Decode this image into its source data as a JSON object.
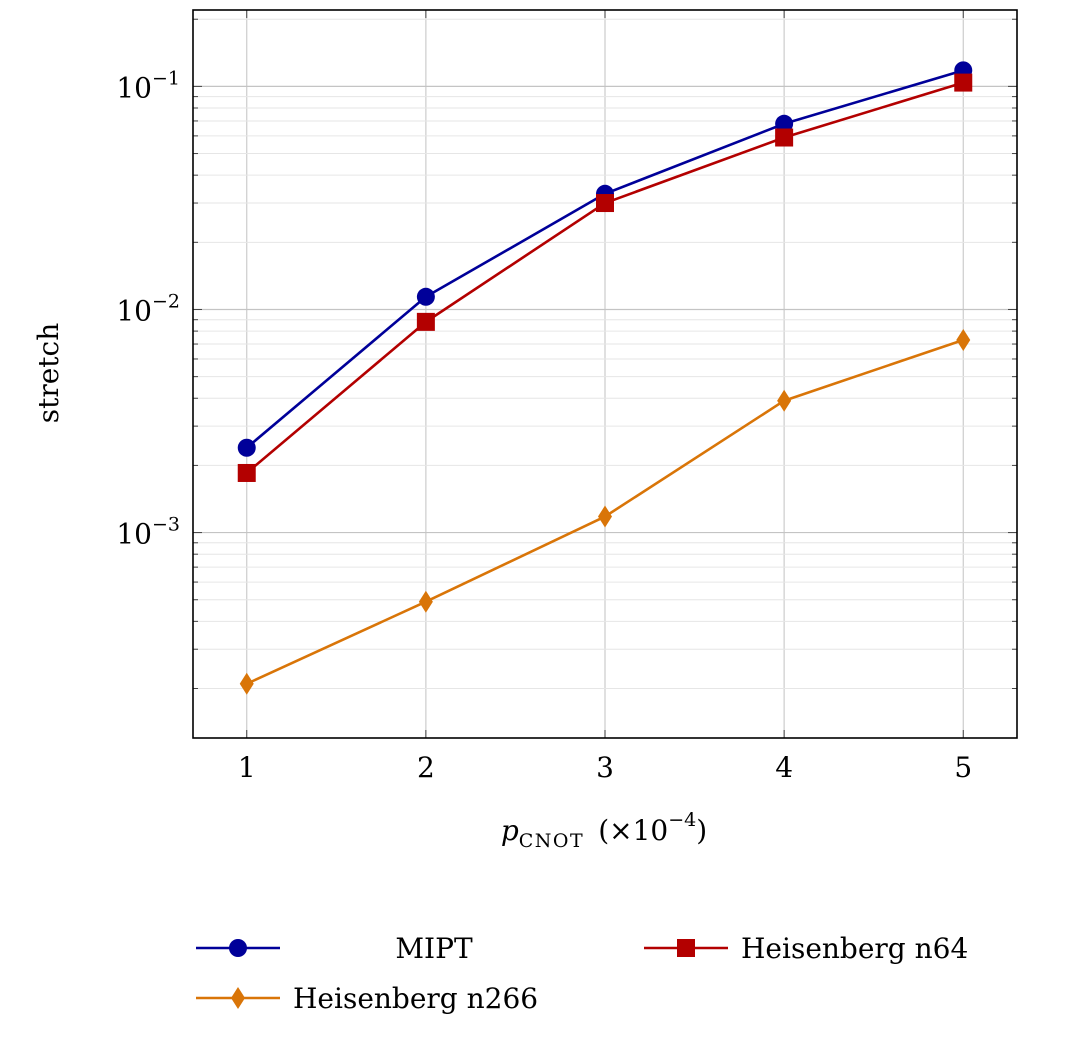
{
  "chart_data": {
    "type": "line",
    "title": "",
    "xlabel": {
      "main": "p",
      "subscript": "CNOT",
      "suffix_open": "(×10",
      "suffix_exp": "−4",
      "suffix_close": ")"
    },
    "ylabel": "stretch",
    "x": [
      1,
      2,
      3,
      4,
      5
    ],
    "xlim": [
      0.7,
      5.3
    ],
    "xticks": [
      "1",
      "2",
      "3",
      "4",
      "5"
    ],
    "ylim": [
      0.00012,
      0.22
    ],
    "yscale": "log",
    "yticks": [
      {
        "value": 0.001,
        "base": "10",
        "exp": "−3"
      },
      {
        "value": 0.01,
        "base": "10",
        "exp": "−2"
      },
      {
        "value": 0.1,
        "base": "10",
        "exp": "−1"
      }
    ],
    "grid": true,
    "legend_position": "bottom",
    "series": [
      {
        "name": "MIPT",
        "color": "#000099",
        "marker": "circle",
        "values": [
          0.0024,
          0.0114,
          0.033,
          0.068,
          0.118
        ]
      },
      {
        "name": "Heisenberg n64",
        "color": "#b30000",
        "marker": "square",
        "values": [
          0.00185,
          0.0088,
          0.03,
          0.059,
          0.104
        ]
      },
      {
        "name": "Heisenberg n266",
        "color": "#d97508",
        "marker": "diamond",
        "values": [
          0.00021,
          0.00049,
          0.00118,
          0.0039,
          0.0073
        ]
      }
    ]
  }
}
